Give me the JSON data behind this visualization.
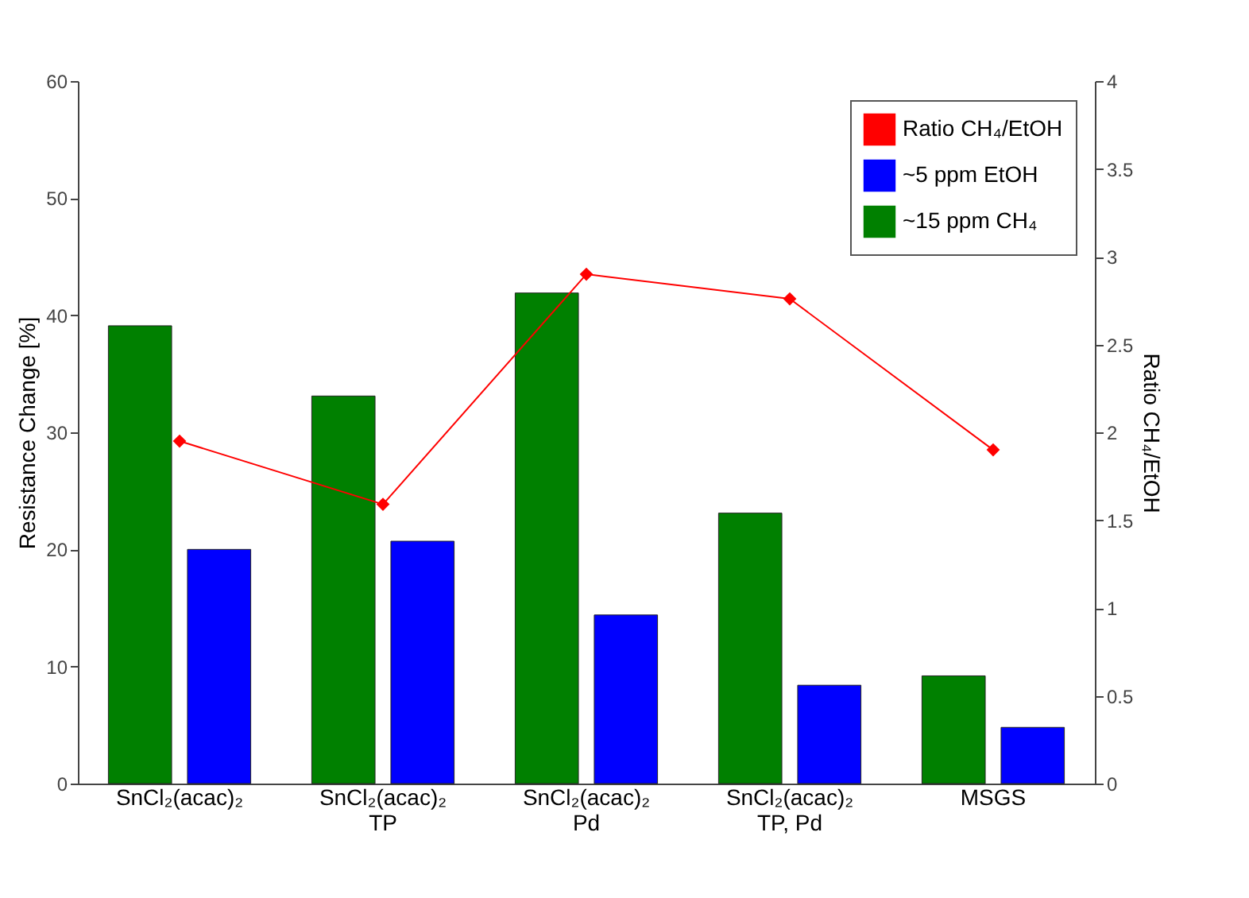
{
  "chart_data": {
    "type": "bar",
    "categories": [
      "SnCl₂(acac)₂",
      "SnCl₂(acac)₂\nTP",
      "SnCl₂(acac)₂\nPd",
      "SnCl₂(acac)₂\nTP, Pd",
      "MSGS"
    ],
    "series": [
      {
        "name": "~15 ppm CH₄",
        "color": "#008000",
        "values": [
          39.1,
          33.1,
          41.9,
          23.1,
          9.2
        ]
      },
      {
        "name": "~5 ppm EtOH",
        "color": "#0000ff",
        "values": [
          20,
          20.7,
          14.4,
          8.4,
          4.8
        ]
      },
      {
        "name": "Ratio CH₄/EtOH",
        "color": "#ff0000",
        "type": "line",
        "axis": "y2",
        "values": [
          1.95,
          1.59,
          2.9,
          2.76,
          1.9
        ]
      }
    ],
    "ylabel": "Resistance Change [%]",
    "y2label": "Ratio CH₄/EtOH",
    "ylim": [
      0,
      60
    ],
    "yticks": [
      0,
      10,
      20,
      30,
      40,
      50,
      60
    ],
    "y2lim": [
      0,
      4
    ],
    "y2ticks": [
      0,
      0.5,
      1,
      1.5,
      2,
      2.5,
      3,
      3.5,
      4
    ],
    "legend": "top right",
    "marker": "diamond",
    "grid": false
  }
}
